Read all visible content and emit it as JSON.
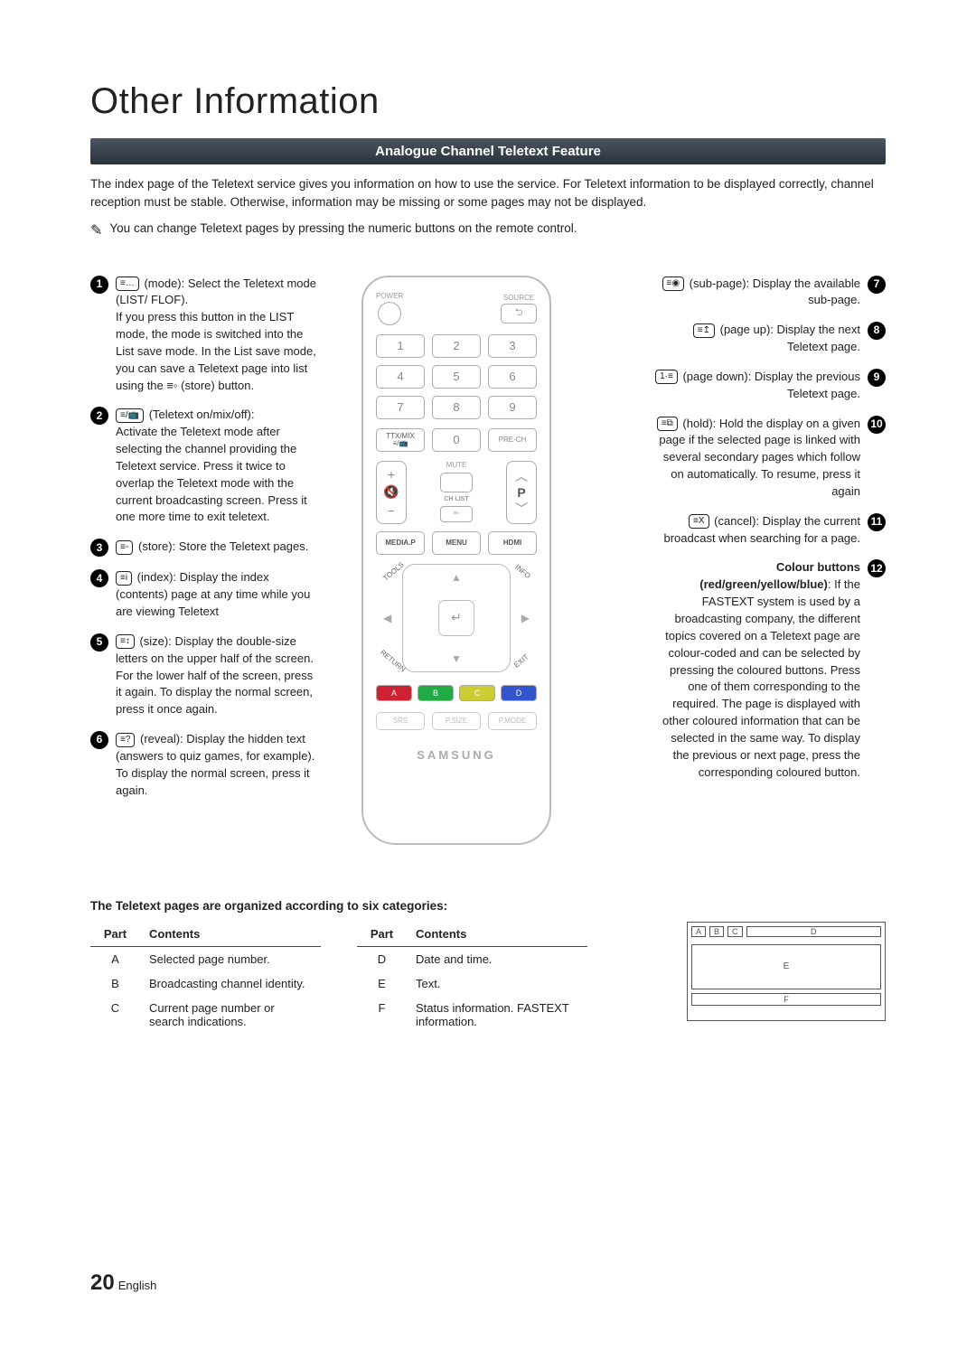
{
  "title": "Other Information",
  "banner": "Analogue Channel Teletext Feature",
  "intro": "The index page of the Teletext service gives you information on how to use the service. For Teletext information to be displayed correctly, channel reception must be stable. Otherwise, information may be missing or some pages may not be displayed.",
  "note": "You can change Teletext pages by pressing the numeric buttons on the remote control.",
  "note_icon": "✎",
  "left_items": [
    {
      "n": "1",
      "icon": "≡…",
      "lead": "(mode): Select the Teletext mode (LIST/ FLOF).",
      "body": "If you press this button in the LIST mode, the mode is switched into the List save mode. In the List save mode, you can save a Teletext page into list using the ≡◦ (store) button."
    },
    {
      "n": "2",
      "icon": "≡/📺",
      "lead": "(Teletext on/mix/off):",
      "body": "Activate the Teletext mode after selecting the channel providing the Teletext service. Press it twice to overlap the Teletext mode with the current broadcasting screen. Press it one more time to exit teletext."
    },
    {
      "n": "3",
      "icon": "≡◦",
      "lead": "(store): Store the Teletext pages.",
      "body": ""
    },
    {
      "n": "4",
      "icon": "≡i",
      "lead": "(index): Display the index (contents) page at any time while you are viewing Teletext",
      "body": ""
    },
    {
      "n": "5",
      "icon": "≡↕",
      "lead": "(size): Display the double-size letters on the upper half of the screen. For the lower half of the screen, press it again. To display the normal screen, press it once again.",
      "body": ""
    },
    {
      "n": "6",
      "icon": "≡?",
      "lead": "(reveal): Display the hidden text (answers to quiz games, for example). To display the normal screen, press it again.",
      "body": ""
    }
  ],
  "right_items": [
    {
      "n": "7",
      "icon": "≡◉",
      "lead": "(sub-page): Display the available sub-page.",
      "body": ""
    },
    {
      "n": "8",
      "icon": "≡↥",
      "lead": "(page up): Display the next Teletext page.",
      "body": ""
    },
    {
      "n": "9",
      "icon": "1·≡",
      "lead": "(page down): Display the previous Teletext page.",
      "body": ""
    },
    {
      "n": "10",
      "icon": "≡⧉",
      "lead": "(hold): Hold the display on a given page if the selected page is linked with several secondary pages which follow on automatically. To resume, press it again",
      "body": ""
    },
    {
      "n": "11",
      "icon": "≡X",
      "lead": "(cancel): Display the current broadcast when searching for a page.",
      "body": ""
    },
    {
      "n": "12",
      "icon": "",
      "lead": "Colour buttons (red/green/yellow/blue)",
      "body": ": If the FASTEXT system is used by a broadcasting company, the different topics covered on a Teletext page are colour-coded and can be selected by pressing the coloured buttons. Press one of them corresponding to the required. The page is displayed with other coloured information that can be selected in the same way. To display the previous or next page, press the corresponding coloured button.",
      "bold_lead": true
    }
  ],
  "remote": {
    "power": "POWER",
    "source": "SOURCE",
    "src_glyph": "⮌",
    "nums": [
      "1",
      "2",
      "3",
      "4",
      "5",
      "6",
      "7",
      "8",
      "9"
    ],
    "ttx": "TTX/MIX",
    "zero": "0",
    "prech": "PRE-CH",
    "mute": "MUTE",
    "chlist": "CH LIST",
    "p": "P",
    "mediap": "MEDIA.P",
    "menu": "MENU",
    "hdmi": "HDMI",
    "tools": "TOOLS",
    "info": "INFO",
    "return": "RETURN",
    "exit": "EXIT",
    "enter": "↵",
    "colors": [
      "A",
      "B",
      "C",
      "D"
    ],
    "bottom": [
      "SRS",
      "P.SIZE",
      "P.MODE"
    ],
    "brand": "SAMSUNG"
  },
  "table_heading": "The Teletext pages are organized according to six categories:",
  "table_headers": {
    "part": "Part",
    "contents": "Contents"
  },
  "table_left": [
    {
      "p": "A",
      "c": "Selected page number."
    },
    {
      "p": "B",
      "c": "Broadcasting channel identity."
    },
    {
      "p": "C",
      "c": "Current page number or search indications."
    }
  ],
  "table_right": [
    {
      "p": "D",
      "c": "Date and time."
    },
    {
      "p": "E",
      "c": "Text."
    },
    {
      "p": "F",
      "c": "Status information. FASTEXT information."
    }
  ],
  "schematic": {
    "a": "A",
    "b": "B",
    "c": "C",
    "d": "D",
    "e": "E",
    "f": "F"
  },
  "footer": {
    "page": "20",
    "lang": "English"
  }
}
